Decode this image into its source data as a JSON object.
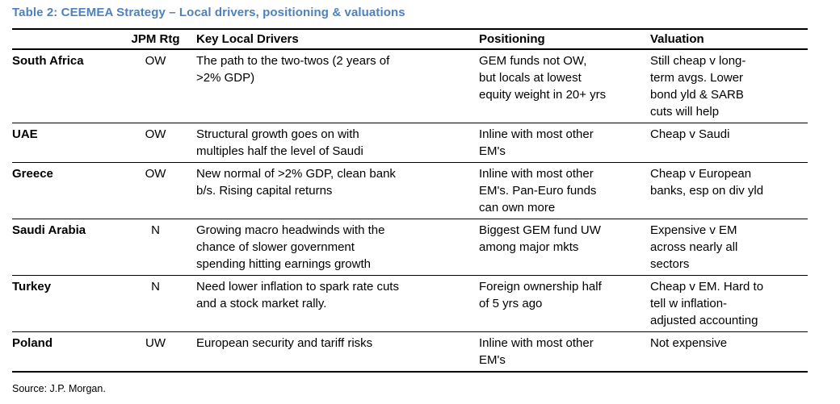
{
  "title": "Table 2: CEEMEA Strategy – Local drivers, positioning & valuations",
  "accent_color": "#4e81bd",
  "table": {
    "headers": [
      "",
      "JPM Rtg",
      "Key Local Drivers",
      "Positioning",
      "Valuation"
    ],
    "rows": [
      {
        "country": "South Africa",
        "rating": "OW",
        "drivers": "The path to the two-twos (2 years of\n>2% GDP)",
        "positioning": "GEM funds not OW,\nbut locals at lowest\nequity weight in 20+ yrs",
        "valuation": "Still cheap v long-\nterm avgs. Lower\nbond yld & SARB\ncuts will help"
      },
      {
        "country": "UAE",
        "rating": "OW",
        "drivers": "Structural growth goes on with\nmultiples half the level of Saudi",
        "positioning": "Inline with most other\nEM's",
        "valuation": "Cheap v Saudi"
      },
      {
        "country": "Greece",
        "rating": "OW",
        "drivers": "New normal of >2% GDP, clean bank\nb/s. Rising capital returns",
        "positioning": "Inline with most other\nEM's. Pan-Euro funds\ncan own more",
        "valuation": "Cheap v European\nbanks, esp on div yld"
      },
      {
        "country": "Saudi Arabia",
        "rating": "N",
        "drivers": "Growing macro headwinds with the\nchance of slower government\nspending hitting earnings growth",
        "positioning": "Biggest GEM fund UW\namong major mkts",
        "valuation": "Expensive v EM\nacross nearly all\nsectors"
      },
      {
        "country": "Turkey",
        "rating": "N",
        "drivers": "Need lower inflation to spark rate cuts\nand a stock market rally.",
        "positioning": "Foreign ownership half\nof 5 yrs ago",
        "valuation": "Cheap v EM. Hard to\ntell w inflation-\nadjusted accounting"
      },
      {
        "country": "Poland",
        "rating": "UW",
        "drivers": "European security and tariff risks",
        "positioning": "Inline with most other\nEM's",
        "valuation": "Not expensive"
      }
    ]
  },
  "source": "Source: J.P. Morgan."
}
